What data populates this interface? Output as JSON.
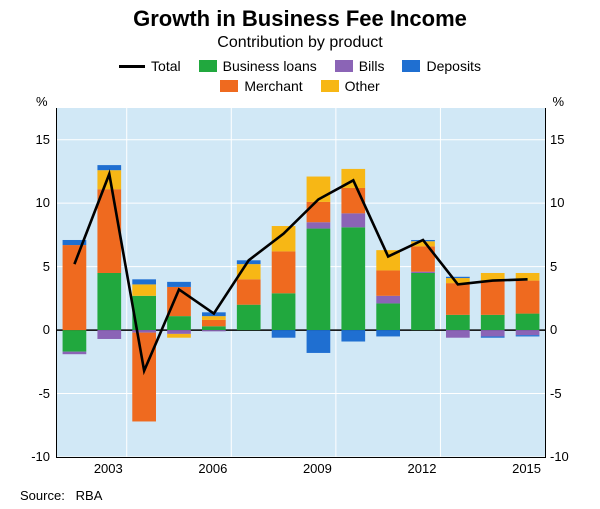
{
  "title": "Growth in Business Fee Income",
  "title_fontsize": 22,
  "subtitle": "Contribution by product",
  "subtitle_fontsize": 16,
  "source": {
    "label": "Source:",
    "value": "RBA"
  },
  "plot_bg": "#d1e8f6",
  "grid_color": "#ffffff",
  "axis_color": "#000000",
  "zero_line_width": 1.5,
  "y": {
    "unit": "%",
    "min": -10,
    "max": 17.5,
    "ticks": [
      -10,
      -5,
      0,
      5,
      10,
      15
    ],
    "tick_labels": [
      "-10",
      "-5",
      "0",
      "5",
      "10",
      "15"
    ]
  },
  "x": {
    "years": [
      2002,
      2003,
      2004,
      2005,
      2006,
      2007,
      2008,
      2009,
      2010,
      2011,
      2012,
      2013,
      2014,
      2015
    ],
    "tick_years": [
      2003,
      2006,
      2009,
      2012,
      2015
    ]
  },
  "series": [
    {
      "key": "total",
      "label": "Total",
      "type": "line",
      "color": "#000000",
      "width": 2.6
    },
    {
      "key": "loans",
      "label": "Business loans",
      "type": "bar",
      "color": "#21a83e"
    },
    {
      "key": "bills",
      "label": "Bills",
      "type": "bar",
      "color": "#8b64b6"
    },
    {
      "key": "deposits",
      "label": "Deposits",
      "type": "bar",
      "color": "#1f6fd1"
    },
    {
      "key": "merchant",
      "label": "Merchant",
      "type": "bar",
      "color": "#ef6a1f"
    },
    {
      "key": "other",
      "label": "Other",
      "type": "bar",
      "color": "#f7b715"
    }
  ],
  "bar_width": 0.68,
  "data": {
    "total": [
      5.2,
      12.3,
      -3.2,
      3.2,
      1.3,
      5.5,
      7.6,
      10.3,
      11.8,
      5.8,
      7.1,
      3.6,
      3.9,
      4.0
    ],
    "loans": [
      -1.7,
      4.5,
      2.7,
      1.1,
      0.3,
      2.0,
      2.9,
      8.0,
      8.1,
      2.1,
      4.5,
      1.2,
      1.2,
      1.3
    ],
    "bills": [
      -0.2,
      -0.7,
      -0.2,
      -0.3,
      -0.1,
      0.0,
      0.0,
      0.5,
      1.1,
      0.6,
      0.1,
      -0.6,
      -0.5,
      -0.4
    ],
    "deposits": [
      0.4,
      0.4,
      0.4,
      0.4,
      0.3,
      0.3,
      -0.6,
      -1.8,
      -0.9,
      -0.5,
      0.1,
      0.1,
      -0.1,
      -0.1
    ],
    "merchant": [
      6.7,
      6.6,
      -7.0,
      2.3,
      0.5,
      2.0,
      3.3,
      1.6,
      2.0,
      2.0,
      2.0,
      2.5,
      2.7,
      2.6
    ],
    "other": [
      0.0,
      1.5,
      0.9,
      -0.3,
      0.3,
      1.2,
      2.0,
      2.0,
      1.5,
      1.6,
      0.4,
      0.4,
      0.6,
      0.6
    ]
  }
}
